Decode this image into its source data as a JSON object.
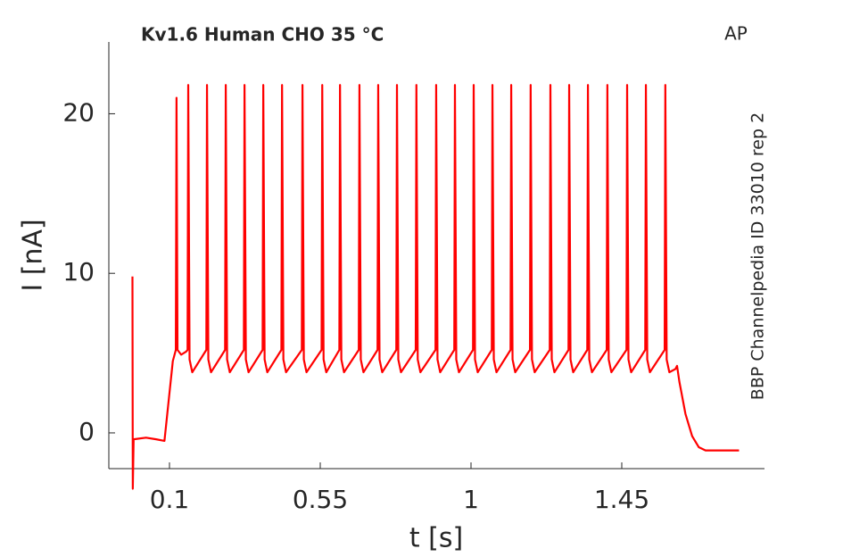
{
  "chart_data": {
    "type": "line",
    "title": "Kv1.6  Human  CHO  35 °C",
    "annotations": [
      "AP",
      "BBP Channelpedia ID 33010 rep 2"
    ],
    "xlabel": "t [s]",
    "ylabel": "I [nA]",
    "xlim": [
      -0.081,
      1.876
    ],
    "ylim": [
      -2.24,
      24.5
    ],
    "xticks": [
      0.1,
      0.55,
      1,
      1.45
    ],
    "yticks": [
      0,
      10,
      20
    ],
    "grid": false,
    "series": [
      {
        "color": "#ff0000",
        "x": [
          -0.0105,
          -0.0095,
          -0.007,
          0.03,
          0.06,
          0.085,
          0.095,
          0.11,
          0.119,
          0.121,
          0.124,
          0.135,
          0.15,
          0.154,
          0.156,
          0.16,
          0.168,
          0.21,
          0.212,
          0.216,
          0.224,
          0.266,
          0.268,
          0.272,
          0.28,
          0.322,
          0.324,
          0.328,
          0.336,
          0.378,
          0.38,
          0.384,
          0.392,
          0.434,
          0.436,
          0.44,
          0.448,
          0.495,
          0.497,
          0.501,
          0.509,
          0.554,
          0.556,
          0.56,
          0.568,
          0.607,
          0.609,
          0.613,
          0.621,
          0.665,
          0.667,
          0.671,
          0.679,
          0.721,
          0.723,
          0.727,
          0.735,
          0.777,
          0.779,
          0.783,
          0.791,
          0.835,
          0.837,
          0.841,
          0.849,
          0.894,
          0.896,
          0.9,
          0.908,
          0.95,
          0.952,
          0.956,
          0.964,
          1.006,
          1.008,
          1.012,
          1.02,
          1.062,
          1.064,
          1.068,
          1.076,
          1.118,
          1.12,
          1.124,
          1.132,
          1.176,
          1.178,
          1.182,
          1.19,
          1.235,
          1.237,
          1.241,
          1.249,
          1.291,
          1.293,
          1.297,
          1.305,
          1.347,
          1.349,
          1.353,
          1.361,
          1.405,
          1.407,
          1.411,
          1.419,
          1.464,
          1.466,
          1.47,
          1.478,
          1.52,
          1.522,
          1.526,
          1.534,
          1.578,
          1.58,
          1.584,
          1.592,
          1.61,
          1.615,
          1.622,
          1.64,
          1.66,
          1.68,
          1.7,
          1.75,
          1.8
        ],
        "values": [
          9.8,
          -3.5,
          -0.4,
          -0.3,
          -0.4,
          -0.5,
          1.5,
          4.5,
          5.2,
          21.0,
          5.2,
          4.9,
          5.1,
          5.2,
          21.8,
          4.6,
          3.8,
          5.2,
          21.8,
          4.6,
          3.8,
          5.2,
          21.8,
          4.6,
          3.8,
          5.2,
          21.8,
          4.6,
          3.8,
          5.2,
          21.8,
          4.6,
          3.8,
          5.2,
          21.8,
          4.6,
          3.8,
          5.2,
          21.8,
          4.6,
          3.8,
          5.2,
          21.8,
          4.6,
          3.8,
          5.2,
          21.8,
          4.6,
          3.8,
          5.2,
          21.8,
          4.6,
          3.8,
          5.2,
          21.8,
          4.6,
          3.8,
          5.2,
          21.8,
          4.6,
          3.8,
          5.2,
          21.8,
          4.6,
          3.8,
          5.2,
          21.8,
          4.6,
          3.8,
          5.2,
          21.8,
          4.6,
          3.8,
          5.2,
          21.8,
          4.6,
          3.8,
          5.2,
          21.8,
          4.6,
          3.8,
          5.2,
          21.8,
          4.6,
          3.8,
          5.2,
          21.8,
          4.6,
          3.8,
          5.2,
          21.8,
          4.6,
          3.8,
          5.2,
          21.8,
          4.6,
          3.8,
          5.2,
          21.8,
          4.6,
          3.8,
          5.2,
          21.8,
          4.6,
          3.8,
          5.2,
          21.8,
          4.6,
          3.8,
          5.2,
          21.8,
          4.6,
          3.8,
          5.2,
          21.8,
          4.6,
          3.8,
          4.0,
          4.2,
          3.2,
          1.2,
          -0.2,
          -0.9,
          -1.1,
          -1.1,
          -1.1
        ]
      }
    ]
  }
}
